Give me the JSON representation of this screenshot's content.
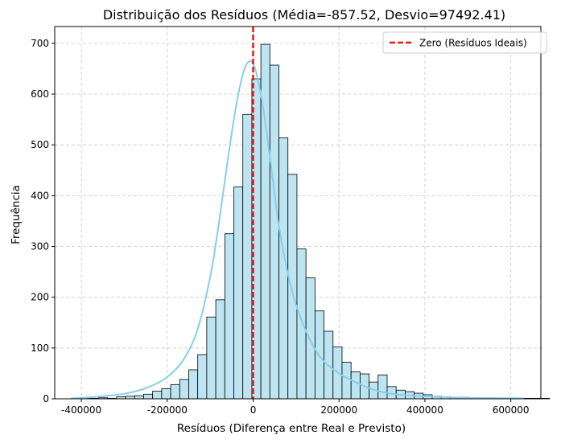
{
  "chart_data": {
    "type": "bar",
    "title": "Distribuição dos Resíduos (Média=-857.52, Desvio=97492.41)",
    "xlabel": "Resíduos (Diferença entre Real e Previsto)",
    "ylabel": "Frequência",
    "xlim": [
      -462000,
      670000
    ],
    "ylim": [
      0,
      733
    ],
    "xticks": [
      -400000,
      -200000,
      0,
      200000,
      400000,
      600000
    ],
    "yticks": [
      0,
      100,
      200,
      300,
      400,
      500,
      600,
      700
    ],
    "grid": true,
    "legend_position": "top-right",
    "histogram": {
      "bin_start": -423000,
      "bin_width": 21000,
      "counts": [
        1,
        1,
        1,
        2,
        1,
        4,
        5,
        6,
        9,
        15,
        20,
        28,
        38,
        57,
        87,
        161,
        195,
        325,
        417,
        560,
        630,
        698,
        657,
        514,
        442,
        295,
        238,
        173,
        133,
        102,
        72,
        53,
        49,
        33,
        47,
        24,
        17,
        14,
        11,
        8,
        5,
        4,
        3,
        3,
        2,
        2,
        2,
        1,
        1,
        1,
        1,
        1,
        1
      ]
    },
    "series": [
      {
        "name": "",
        "type": "histogram",
        "color": "#bde4f1",
        "edgecolor": "#000000"
      },
      {
        "name": "",
        "type": "kde",
        "color": "#87ceeb",
        "x": [
          -423000,
          -380000,
          -340000,
          -300000,
          -260000,
          -220000,
          -190000,
          -160000,
          -130000,
          -100000,
          -80000,
          -60000,
          -40000,
          -20000,
          0,
          20000,
          40000,
          60000,
          80000,
          100000,
          130000,
          160000,
          200000,
          240000,
          280000,
          330000,
          400000,
          500000,
          630000
        ],
        "y": [
          1,
          3,
          6,
          10,
          18,
          32,
          50,
          80,
          135,
          240,
          345,
          465,
          575,
          650,
          660,
          590,
          470,
          340,
          250,
          185,
          120,
          78,
          50,
          32,
          18,
          9,
          5,
          2,
          1
        ]
      }
    ],
    "reference_line": {
      "x": 0,
      "label": "Zero (Resíduos Ideais)",
      "color": "#e31a1c",
      "style": "dashed"
    }
  }
}
